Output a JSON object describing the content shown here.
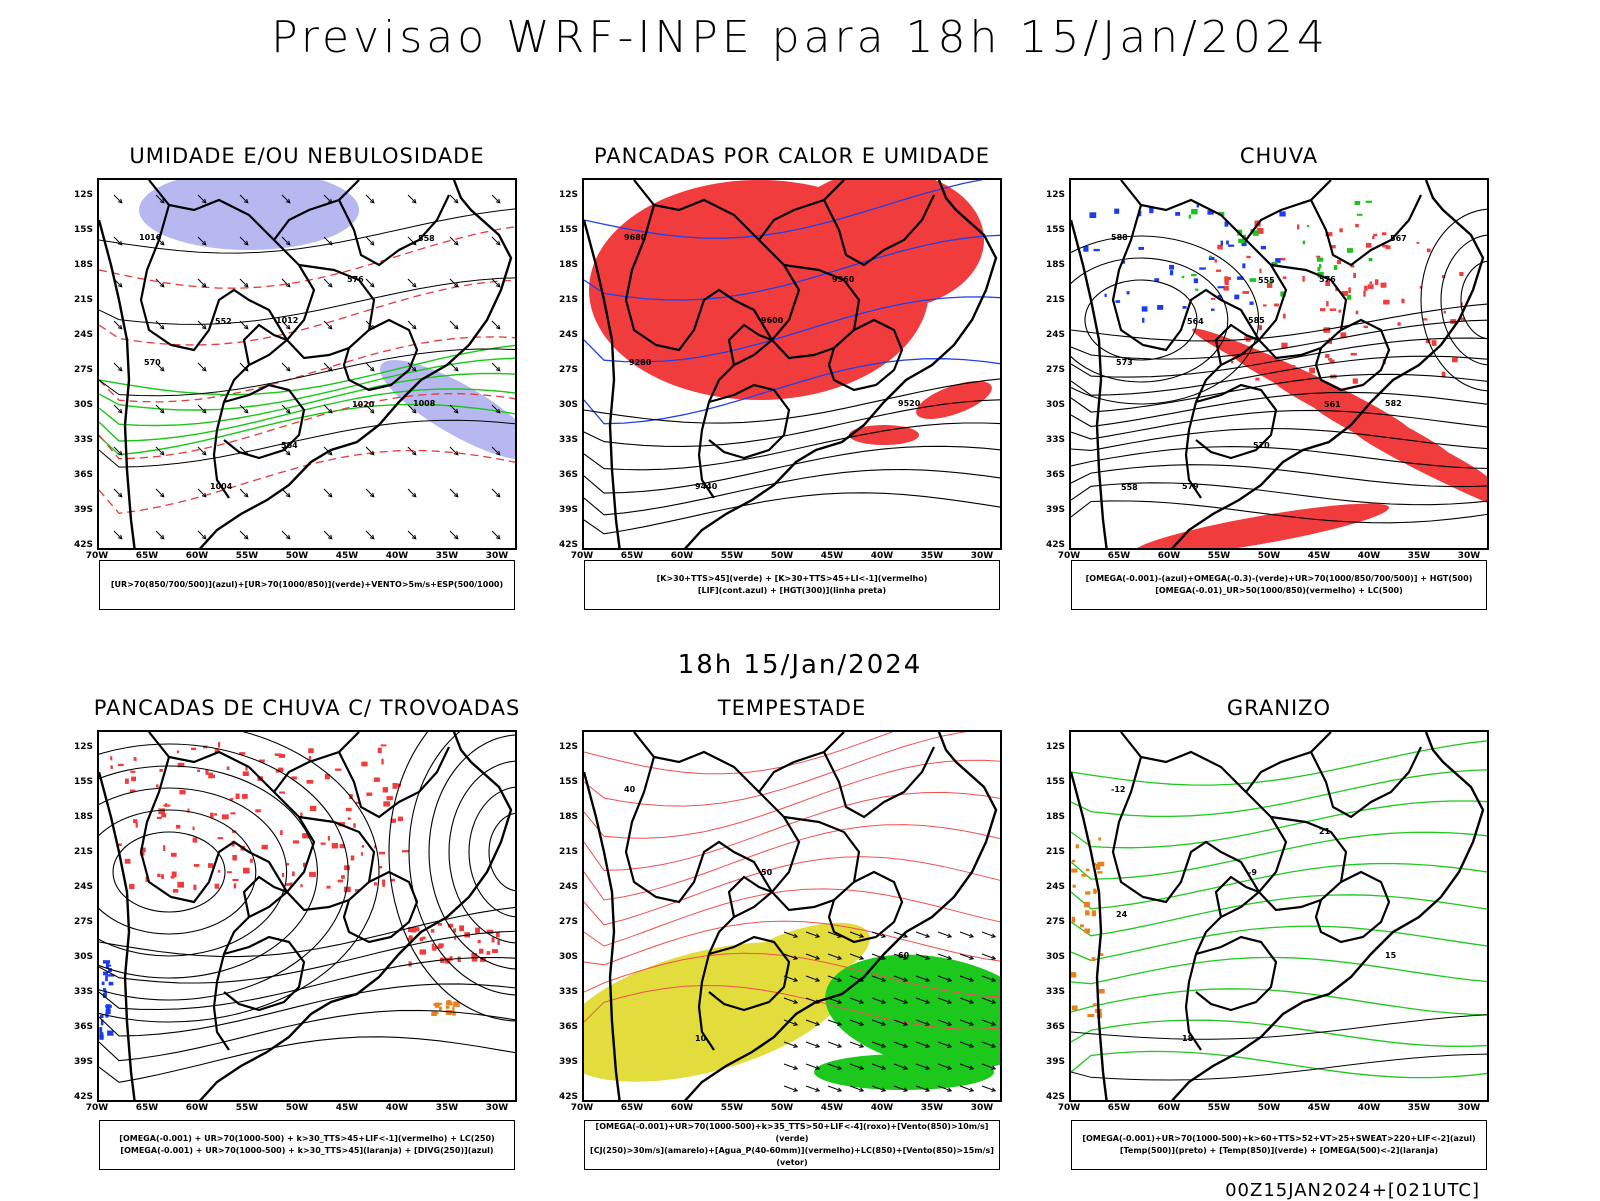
{
  "header": {
    "title": "Previsao WRF-INPE  para 18h 15/Jan/2024",
    "mid_title": "18h 15/Jan/2024",
    "footer": "00Z15JAN2024+[021UTC]"
  },
  "axes": {
    "lat_labels": [
      "12S",
      "15S",
      "18S",
      "21S",
      "24S",
      "27S",
      "30S",
      "33S",
      "36S",
      "39S",
      "42S"
    ],
    "lon_labels": [
      "70W",
      "65W",
      "60W",
      "55W",
      "50W",
      "45W",
      "40W",
      "35W",
      "30W"
    ]
  },
  "panels": [
    {
      "title": "UMIDADE E/OU NEBULOSIDADE",
      "legend": [
        "[UR>70(850/700/500)](azul)+[UR>70(1000/850)](verde)+VENTO>5m/s+ESP(500/1000)"
      ],
      "colors": {
        "fill_a": "#b0b0ef",
        "line_a": "#18c818",
        "line_b": "#e43b3b",
        "line_c": "#000000"
      },
      "contour_labels": [
        "1016",
        "1012",
        "1008",
        "1004",
        "576",
        "570",
        "564",
        "558",
        "552",
        "1020"
      ]
    },
    {
      "title": "PANCADAS POR CALOR E UMIDADE",
      "legend": [
        "[K>30+TTS>45](verde) + [K>30+TTS>45+LI<-1](vermelho)",
        "[LIF](cont.azul) + [HGT(300)](linha preta)"
      ],
      "colors": {
        "fill_a": "#f03c3c",
        "line_a": "#2040e8",
        "line_c": "#000000"
      },
      "contour_labels": [
        "9680",
        "9600",
        "9520",
        "9440",
        "9360",
        "9280"
      ]
    },
    {
      "title": "CHUVA",
      "legend": [
        "[OMEGA(-0.001)-(azul)+OMEGA(-0.3)-(verde)+UR>70(1000/850/700/500)] + HGT(500)",
        "[OMEGA(-0.01)_UR>50(1000/850)(vermelho) + LC(500)"
      ],
      "colors": {
        "fill_a": "#f03c3c",
        "line_a": "#1a3cf0",
        "line_b": "#20c020",
        "line_c": "#000000"
      },
      "contour_labels": [
        "588",
        "585",
        "582",
        "579",
        "576",
        "573",
        "570",
        "567",
        "564",
        "561",
        "558",
        "555"
      ]
    },
    {
      "title": "PANCADAS DE CHUVA C/ TROVOADAS",
      "legend": [
        "[OMEGA(-0.001) + UR>70(1000-500) + k>30_TTS>45+LIF<-1](vermelho) + LC(250)",
        "[OMEGA(-0.001) + UR>70(1000-500) + k>30_TTS>45](laranja) + [DIVG(250)](azul)"
      ],
      "colors": {
        "fill_a": "#f03c3c",
        "line_a": "#e8801c",
        "line_b": "#1a3cf0",
        "line_c": "#000000"
      },
      "contour_labels": []
    },
    {
      "title": "TEMPESTADE",
      "legend": [
        "[OMEGA(-0.001)+UR>70(1000-500)+k>35_TTS>50+LIF<-4](roxo)+[Vento(850)>10m/s](verde)",
        "[CJ(250)>30m/s](amarelo)+[Agua_P(40-60mm)](vermelho)+LC(850)+[Vento(850)>15m/s](vetor)"
      ],
      "colors": {
        "fill_a": "#e2dc3c",
        "fill_b": "#1cc81c",
        "line_a": "#f05050",
        "line_c": "#000000"
      },
      "contour_labels": [
        "40",
        "50",
        "60",
        "10"
      ]
    },
    {
      "title": "GRANIZO",
      "legend": [
        "[OMEGA(-0.001)+UR>70(1000-500)+k>60+TTS>52+VT>25+SWEAT>220+LIF<-2](azul)",
        "[Temp(500)](preto) + [Temp(850)](verde) + [OMEGA(500)<-2](laranja)"
      ],
      "colors": {
        "line_a": "#20c820",
        "line_b": "#e8801c",
        "line_c": "#000000"
      },
      "contour_labels": [
        "-12",
        "-9",
        "15",
        "18",
        "21",
        "24"
      ]
    }
  ]
}
